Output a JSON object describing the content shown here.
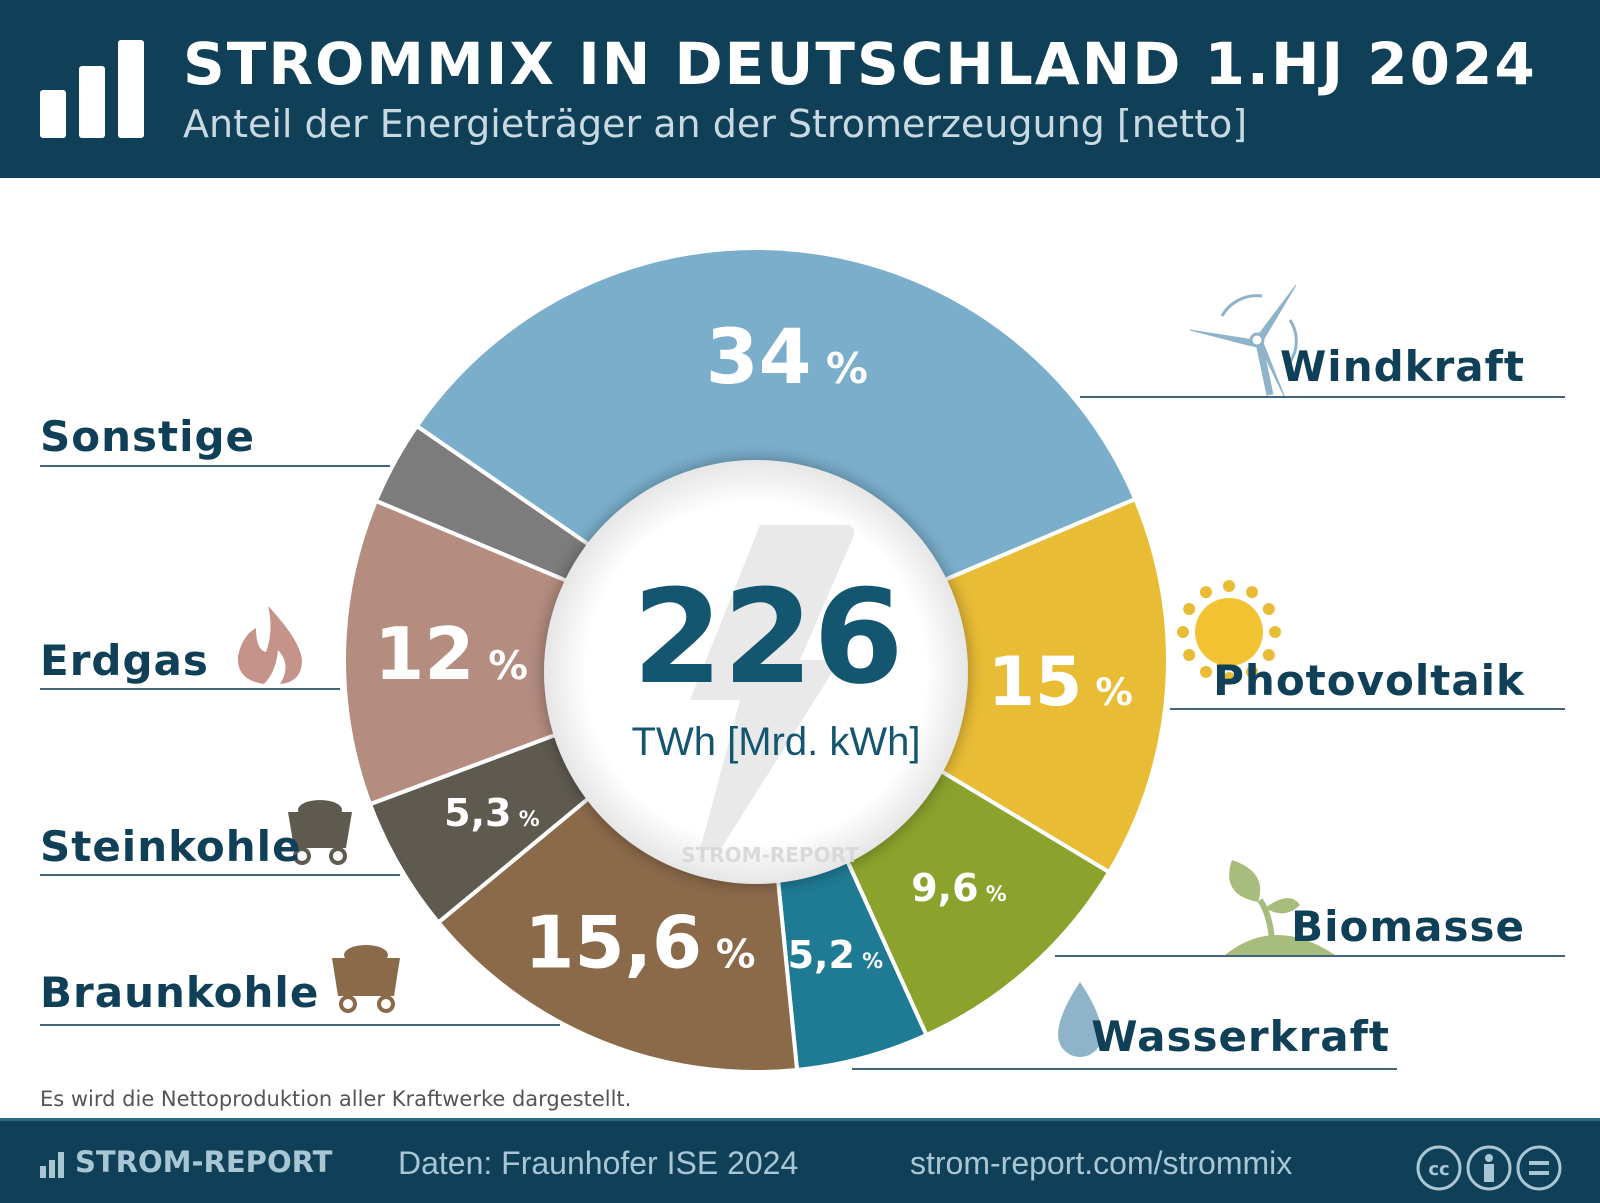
{
  "header": {
    "title": "STROMMIX IN DEUTSCHLAND 1.HJ 2024",
    "subtitle": "Anteil der Energieträger an der Stromerzeugung [netto]",
    "icon": "bar-chart-icon"
  },
  "chart_data": {
    "type": "pie",
    "style": "donut",
    "center_value": "226",
    "center_unit": "TWh [Mrd. kWh]",
    "watermark": "STROM-REPORT",
    "slices": [
      {
        "name": "Windkraft",
        "value": 34,
        "label": "34",
        "color": "#7aaecb",
        "icon": "wind-turbine-icon"
      },
      {
        "name": "Photovoltaik",
        "value": 15,
        "label": "15",
        "color": "#e8bc35",
        "icon": "sun-icon"
      },
      {
        "name": "Biomasse",
        "value": 9.6,
        "label": "9,6",
        "color": "#8ba22c",
        "icon": "plant-icon"
      },
      {
        "name": "Wasserkraft",
        "value": 5.2,
        "label": "5,2",
        "color": "#1f7a94",
        "icon": "water-drop-icon"
      },
      {
        "name": "Braunkohle",
        "value": 15.6,
        "label": "15,6",
        "color": "#8b6a4a",
        "icon": "coal-cart-icon"
      },
      {
        "name": "Steinkohle",
        "value": 5.3,
        "label": "5,3",
        "color": "#5e5a50",
        "icon": "coal-cart-icon"
      },
      {
        "name": "Erdgas",
        "value": 12,
        "label": "12",
        "color": "#b48c80",
        "icon": "flame-icon"
      },
      {
        "name": "Sonstige",
        "value": 3.3,
        "label": "",
        "color": "#7c7c7c"
      }
    ],
    "percent_sign": "%"
  },
  "note": "Es wird die Nettoproduktion aller Kraftwerke dargestellt.",
  "footer": {
    "brand": "STROM-REPORT",
    "source": "Daten: Fraunhofer ISE 2024",
    "url": "strom-report.com/strommix",
    "license_icons": [
      "cc-icon",
      "by-icon",
      "nd-icon"
    ]
  }
}
